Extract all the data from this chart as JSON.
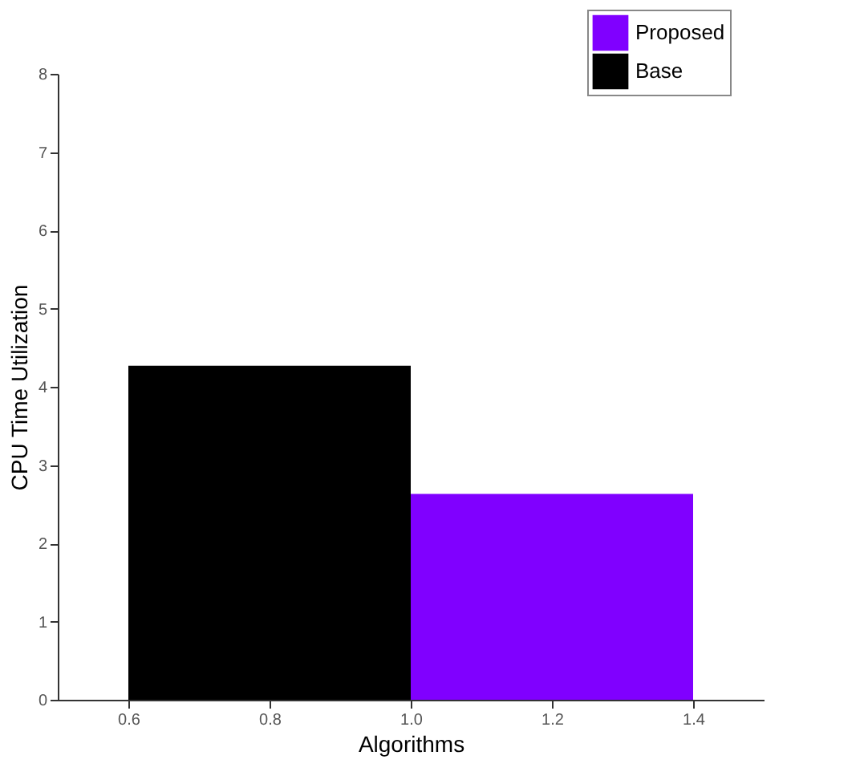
{
  "chart_data": {
    "type": "bar",
    "xlabel": "Algorithms",
    "ylabel": "CPU Time Utilization",
    "series": [
      {
        "name": "Proposed",
        "color": "#8000ff",
        "x": [
          1.2
        ],
        "values": [
          2.63
        ]
      },
      {
        "name": "Base",
        "color": "#000000",
        "x": [
          0.8
        ],
        "values": [
          4.27
        ]
      }
    ],
    "xlim": [
      0.5,
      1.5
    ],
    "xticks": [
      0.6,
      0.8,
      {
        "value": 1,
        "label": "1.0"
      },
      1.2,
      1.4
    ],
    "ylim": [
      0,
      8
    ],
    "yticks": [
      0,
      1,
      2,
      3,
      4,
      5,
      6,
      7,
      8
    ],
    "grid": false,
    "legend": "top right"
  }
}
